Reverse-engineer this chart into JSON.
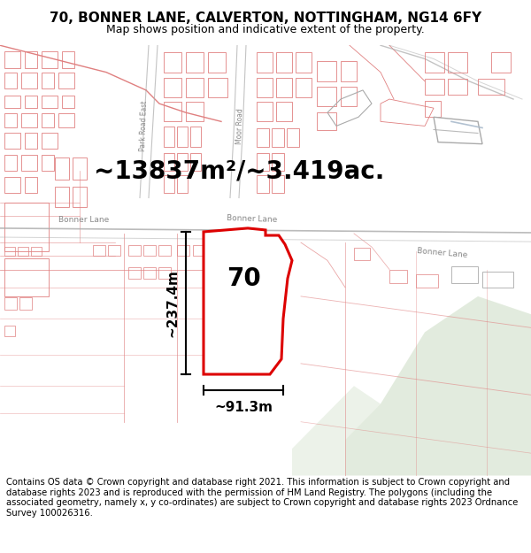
{
  "title": "70, BONNER LANE, CALVERTON, NOTTINGHAM, NG14 6FY",
  "subtitle": "Map shows position and indicative extent of the property.",
  "footer": "Contains OS data © Crown copyright and database right 2021. This information is subject to Crown copyright and database rights 2023 and is reproduced with the permission of HM Land Registry. The polygons (including the associated geometry, namely x, y co-ordinates) are subject to Crown copyright and database rights 2023 Ordnance Survey 100026316.",
  "area_label": "~13837m²/~3.419ac.",
  "width_label": "~91.3m",
  "height_label": "~237.4m",
  "property_number": "70",
  "bg_color": "#ffffff",
  "map_bg": "#ffffff",
  "line_color": "#e08080",
  "property_fill": "#ffffff",
  "property_edge_color": "#dd0000",
  "green_color": "#c8d8c0",
  "green2_color": "#d0dfc8",
  "title_fontsize": 11,
  "subtitle_fontsize": 9,
  "footer_fontsize": 7.2,
  "area_fontsize": 20,
  "number_fontsize": 20,
  "meas_fontsize": 11,
  "road_label_fontsize": 6.5
}
